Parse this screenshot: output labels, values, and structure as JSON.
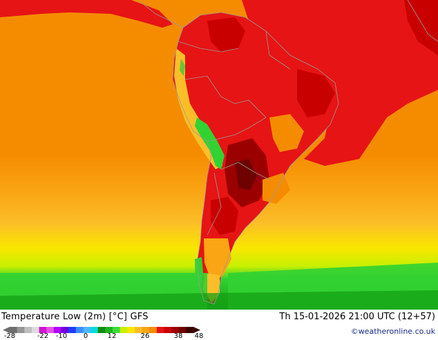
{
  "map": {
    "title_text": "Temperature Low (2m) [°C] GFS",
    "datetime_text": "Th 15-01-2026 21:00 UTC (12+57)",
    "credit_text": "©weatheronline.co.uk",
    "colors": {
      "ocean_orange": "#f58c00",
      "light_orange": "#faa514",
      "yellow_orange": "#fbbe28",
      "yellow": "#fae600",
      "green": "#32d232",
      "dark_green": "#14a014",
      "red": "#e61414",
      "dark_red": "#9b0000",
      "maroon": "#6e0000",
      "andes_green": "#64c832",
      "border_gray": "#9a9a9a"
    },
    "legend": {
      "tick_labels": [
        "-28",
        "-22",
        "-10",
        "0",
        "12",
        "26",
        "38",
        "48"
      ],
      "colors": [
        "#6e6e6e",
        "#969696",
        "#bebebe",
        "#dcdcdc",
        "#d214d2",
        "#e650e6",
        "#b400ff",
        "#6e00dc",
        "#1e3cff",
        "#3c8cff",
        "#50b4ff",
        "#00dcdc",
        "#148c14",
        "#1eb41e",
        "#3cdc3c",
        "#c8f000",
        "#fae600",
        "#fbbe28",
        "#faa514",
        "#f58c00",
        "#e61414",
        "#c80000",
        "#9b0000",
        "#6e0000",
        "#3c0000"
      ]
    }
  }
}
